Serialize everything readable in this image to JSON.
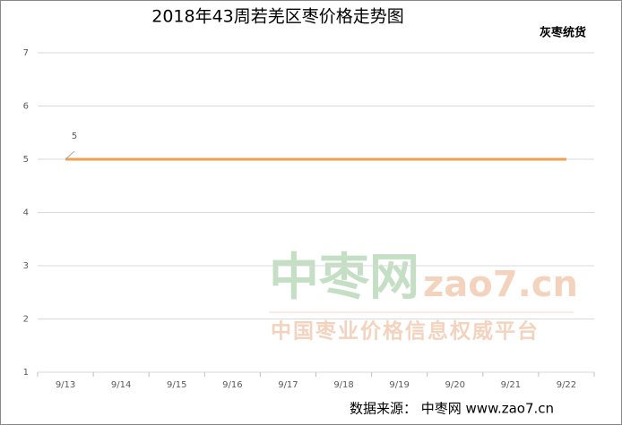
{
  "chart_data": {
    "type": "line",
    "title": "2018年43周若羌区枣价格走势图",
    "categories": [
      "9/13",
      "9/14",
      "9/15",
      "9/16",
      "9/17",
      "9/18",
      "9/19",
      "9/20",
      "9/21",
      "9/22"
    ],
    "series": [
      {
        "name": "灰枣统货",
        "color": "#f0a050",
        "values": [
          5,
          5,
          5,
          5,
          5,
          5,
          5,
          5,
          5,
          5
        ]
      }
    ],
    "ylim": [
      1,
      7
    ],
    "yticks": [
      1,
      2,
      3,
      4,
      5,
      6,
      7
    ],
    "grid": true,
    "watermark": {
      "logo": "中枣网",
      "domain": "zao7.cn",
      "slogan": "中国枣业价格信息权威平台"
    },
    "source": "数据来源： 中枣网 www.zao7.cn"
  }
}
